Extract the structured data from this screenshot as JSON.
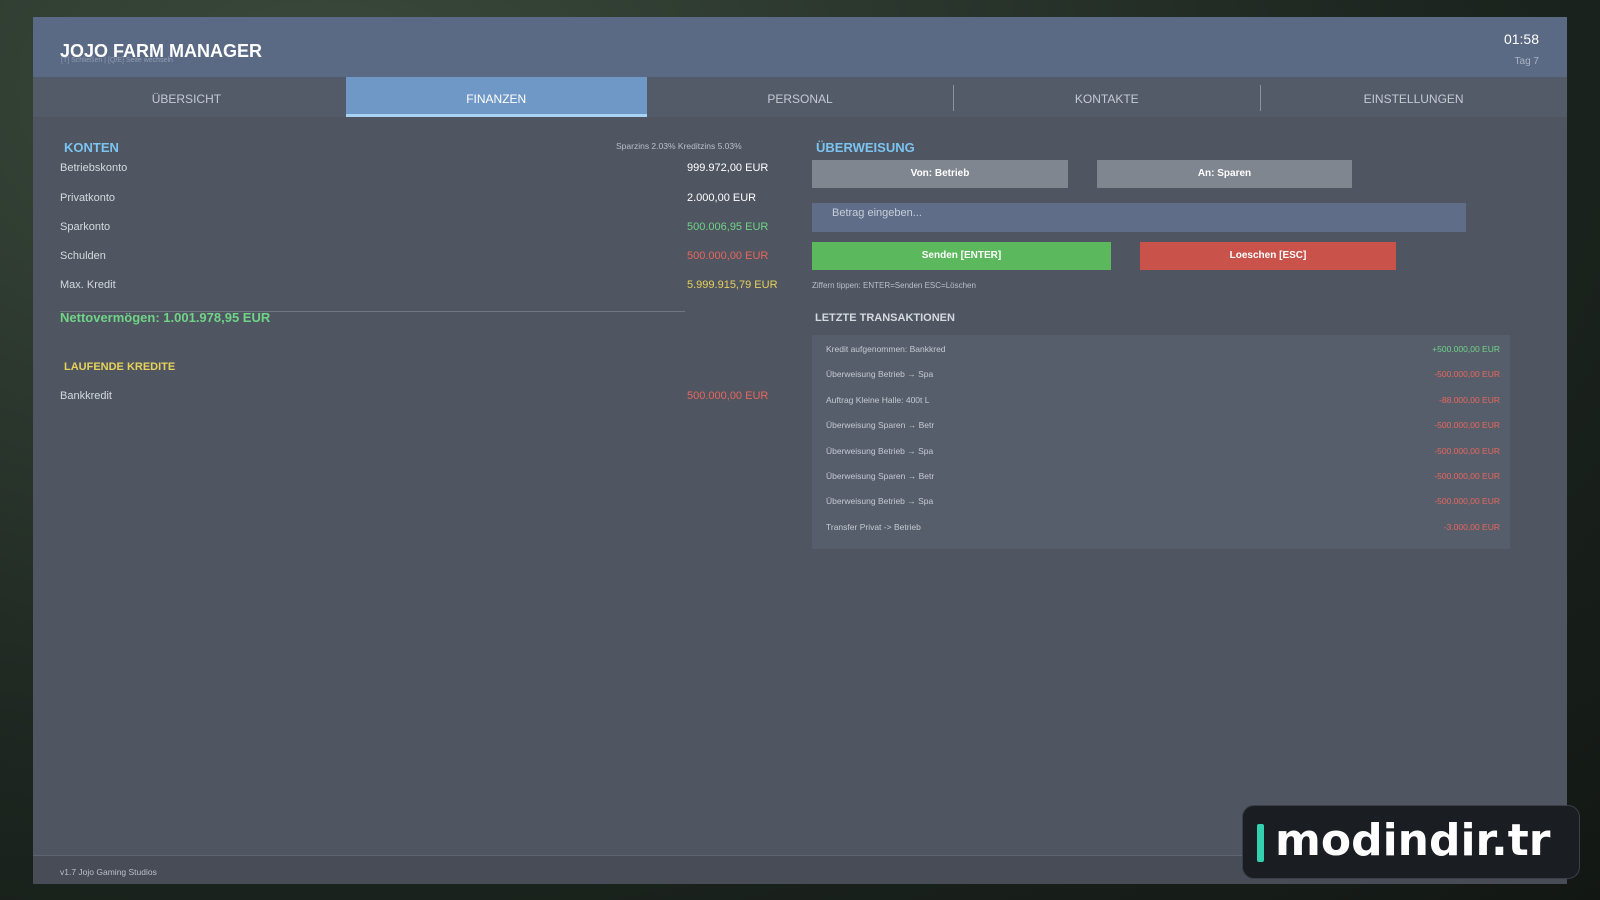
{
  "header": {
    "title": "JOJO FARM MANAGER",
    "hint": "[T] Schließen | [Q/E] Seite wechseln",
    "time": "01:58",
    "day": "Tag 7"
  },
  "tabs": [
    "ÜBERSICHT",
    "FINANZEN",
    "PERSONAL",
    "KONTAKTE",
    "EINSTELLUNGEN"
  ],
  "active_tab": 1,
  "accounts": {
    "title": "KONTEN",
    "rates": "Sparzins 2.03%  Kreditzins 5.03%",
    "rows": [
      {
        "label": "Betriebskonto",
        "value": "999.972,00 EUR",
        "color": "#ffffff"
      },
      {
        "label": "Privatkonto",
        "value": "2.000,00 EUR",
        "color": "#ffffff"
      },
      {
        "label": "Sparkonto",
        "value": "500.006,95 EUR",
        "color": "#6fd486"
      },
      {
        "label": "Schulden",
        "value": "500.000,00 EUR",
        "color": "#e8675c"
      },
      {
        "label": "Max. Kredit",
        "value": "5.999.915,79 EUR",
        "color": "#e6d25a"
      }
    ],
    "net_worth": "Nettovermögen: 1.001.978,95 EUR"
  },
  "loans": {
    "title": "LAUFENDE KREDITE",
    "rows": [
      {
        "label": "Bankkredit",
        "value": "500.000,00 EUR"
      }
    ]
  },
  "transfer": {
    "title": "ÜBERWEISUNG",
    "from": "Von: Betrieb",
    "to": "An: Sparen",
    "placeholder": "Betrag eingeben...",
    "send": "Senden [ENTER]",
    "clear": "Loeschen [ESC]",
    "hint": "Ziffern tippen: ENTER=Senden  ESC=Löschen"
  },
  "transactions": {
    "title": "LETZTE TRANSAKTIONEN",
    "rows": [
      {
        "label": "Kredit aufgenommen: Bankkred",
        "amount": "+500.000,00 EUR",
        "color": "#6fd486"
      },
      {
        "label": "Überweisung Betrieb → Spa",
        "amount": "-500.000,00 EUR",
        "color": "#e8675c"
      },
      {
        "label": "Auftrag Kleine Halle: 400t L",
        "amount": "-88.000,00 EUR",
        "color": "#e8675c"
      },
      {
        "label": "Überweisung Sparen → Betr",
        "amount": "-500.000,00 EUR",
        "color": "#e8675c"
      },
      {
        "label": "Überweisung Betrieb → Spa",
        "amount": "-500.000,00 EUR",
        "color": "#e8675c"
      },
      {
        "label": "Überweisung Sparen → Betr",
        "amount": "-500.000,00 EUR",
        "color": "#e8675c"
      },
      {
        "label": "Überweisung Betrieb → Spa",
        "amount": "-500.000,00 EUR",
        "color": "#e8675c"
      },
      {
        "label": "Transfer Privat -> Betrieb",
        "amount": "-3.000,00 EUR",
        "color": "#e8675c"
      }
    ]
  },
  "footer": {
    "version": "v1.7  Jojo Gaming Studios"
  },
  "watermark": "modindir.tr"
}
